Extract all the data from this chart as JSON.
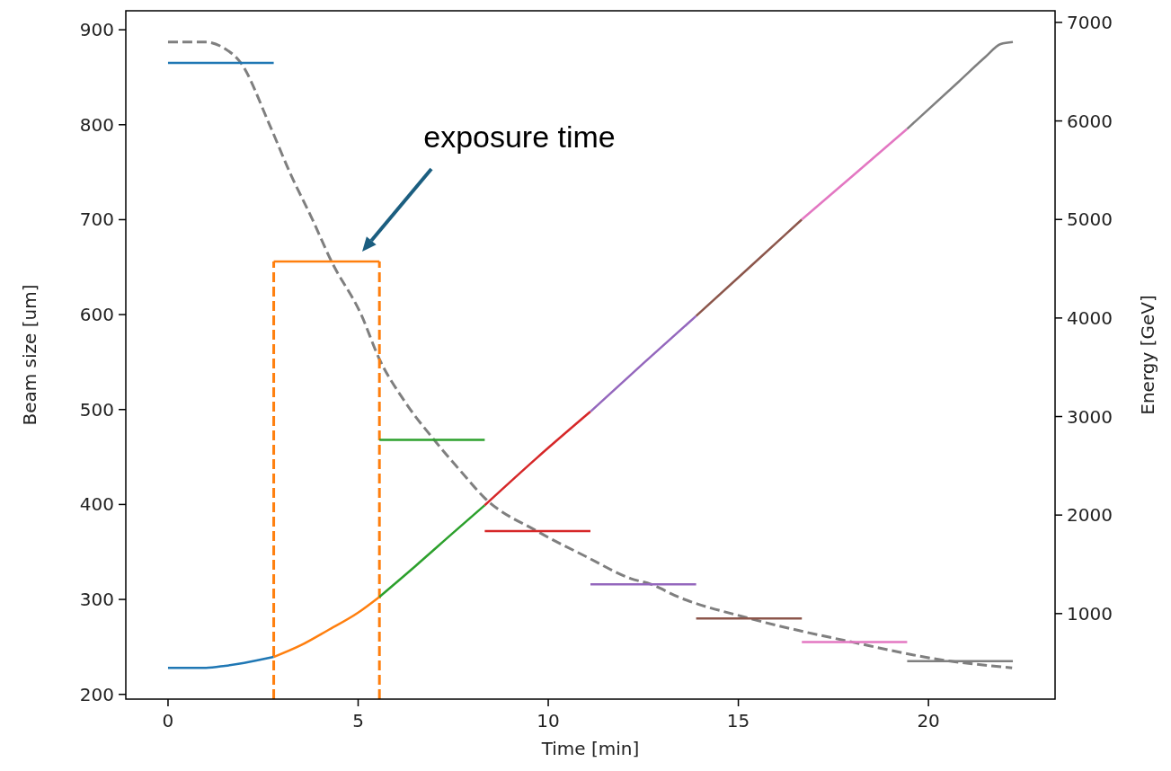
{
  "chart_data": {
    "type": "line",
    "xlabel": "Time [min]",
    "ylabel": "Beam size [um]",
    "y2label": "Energy [GeV]",
    "xlim": [
      -1.11,
      23.33
    ],
    "xticks": [
      0,
      5,
      10,
      15,
      20
    ],
    "ylim": [
      195,
      920
    ],
    "yticks": [
      200,
      300,
      400,
      500,
      600,
      700,
      800,
      900
    ],
    "y2lim": [
      132,
      7118
    ],
    "y2ticks": [
      1000,
      2000,
      3000,
      4000,
      5000,
      6000,
      7000
    ],
    "grid": false,
    "marker": "none",
    "annotations": [
      "exposure time"
    ],
    "series": [
      {
        "color": "#7f7f7f",
        "line_style": "dashed",
        "x": [
          0,
          1.0,
          1.5,
          1.9,
          2.67,
          3.2,
          3.8,
          4.3,
          5.08,
          5.56,
          6.2,
          7.0,
          7.7,
          8.35,
          9.7,
          11,
          12.17,
          12.7,
          13.4,
          15.3,
          18.0,
          20.4,
          22.2
        ],
        "values": [
          887,
          887,
          880,
          866,
          800,
          750,
          700,
          656,
          600,
          553,
          510,
          468,
          435,
          406,
          372,
          345,
          322,
          316,
          303,
          280,
          255,
          236,
          228
        ]
      },
      {
        "color": "#1f77b4",
        "x": [
          0,
          2.78
        ],
        "values": [
          865,
          865
        ]
      },
      {
        "color": "#ff7f0e",
        "x": [
          2.78,
          5.56
        ],
        "values": [
          656,
          656
        ]
      },
      {
        "color": "#ff7f0e",
        "line_style": "dashed",
        "x": [
          2.78,
          2.78
        ],
        "values": [
          195,
          656
        ]
      },
      {
        "color": "#ff7f0e",
        "line_style": "dashed",
        "x": [
          5.56,
          5.56
        ],
        "values": [
          195,
          656
        ]
      },
      {
        "color": "#2ca02c",
        "x": [
          5.56,
          8.33
        ],
        "values": [
          468,
          468
        ]
      },
      {
        "color": "#d62728",
        "x": [
          8.33,
          11.11
        ],
        "values": [
          372,
          372
        ]
      },
      {
        "color": "#9467bd",
        "x": [
          11.11,
          13.89
        ],
        "values": [
          316,
          316
        ]
      },
      {
        "color": "#8c564b",
        "x": [
          13.89,
          16.67
        ],
        "values": [
          280,
          280
        ]
      },
      {
        "color": "#e377c2",
        "x": [
          16.67,
          19.44
        ],
        "values": [
          255,
          255
        ]
      },
      {
        "color": "#7f7f7f",
        "x": [
          19.44,
          22.22
        ],
        "values": [
          235,
          235
        ]
      },
      {
        "color": "#1f77b4",
        "axis": "y2",
        "x": [
          0,
          0.5,
          1.0,
          1.5,
          2.0,
          2.78
        ],
        "values": [
          450,
          450,
          450,
          470,
          500,
          560
        ]
      },
      {
        "color": "#ff7f0e",
        "axis": "y2",
        "x": [
          2.78,
          3.5,
          4.2,
          5.0,
          5.56
        ],
        "values": [
          560,
          680,
          830,
          1010,
          1170
        ]
      },
      {
        "color": "#2ca02c",
        "axis": "y2",
        "x": [
          5.56,
          6.5,
          7.5,
          8.33
        ],
        "values": [
          1170,
          1480,
          1820,
          2100
        ]
      },
      {
        "color": "#d62728",
        "axis": "y2",
        "x": [
          8.33,
          9.7,
          11.11
        ],
        "values": [
          2100,
          2580,
          3050
        ]
      },
      {
        "color": "#9467bd",
        "axis": "y2",
        "x": [
          11.11,
          12.5,
          13.89
        ],
        "values": [
          3050,
          3540,
          4020
        ]
      },
      {
        "color": "#8c564b",
        "axis": "y2",
        "x": [
          13.89,
          15.28,
          16.67
        ],
        "values": [
          4020,
          4510,
          5000
        ]
      },
      {
        "color": "#e377c2",
        "axis": "y2",
        "x": [
          16.67,
          18.06,
          19.44
        ],
        "values": [
          5000,
          5460,
          5920
        ]
      },
      {
        "color": "#7f7f7f",
        "axis": "y2",
        "x": [
          19.44,
          20.8,
          21.5,
          21.9,
          22.22
        ],
        "values": [
          5920,
          6400,
          6650,
          6780,
          6800
        ]
      }
    ]
  }
}
